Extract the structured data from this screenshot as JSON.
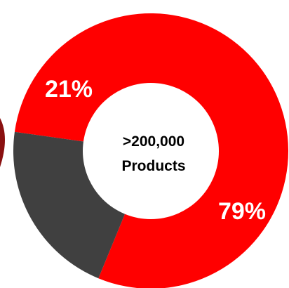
{
  "chart_data": {
    "type": "pie",
    "style": "donut",
    "slices": [
      {
        "label": "79%",
        "value": 79,
        "color": "#ff0000"
      },
      {
        "label": "21%",
        "value": 21,
        "color": "#404040"
      }
    ],
    "center_text": [
      ">200,000",
      "Products"
    ],
    "partial_mark_color": "#8a1010"
  }
}
